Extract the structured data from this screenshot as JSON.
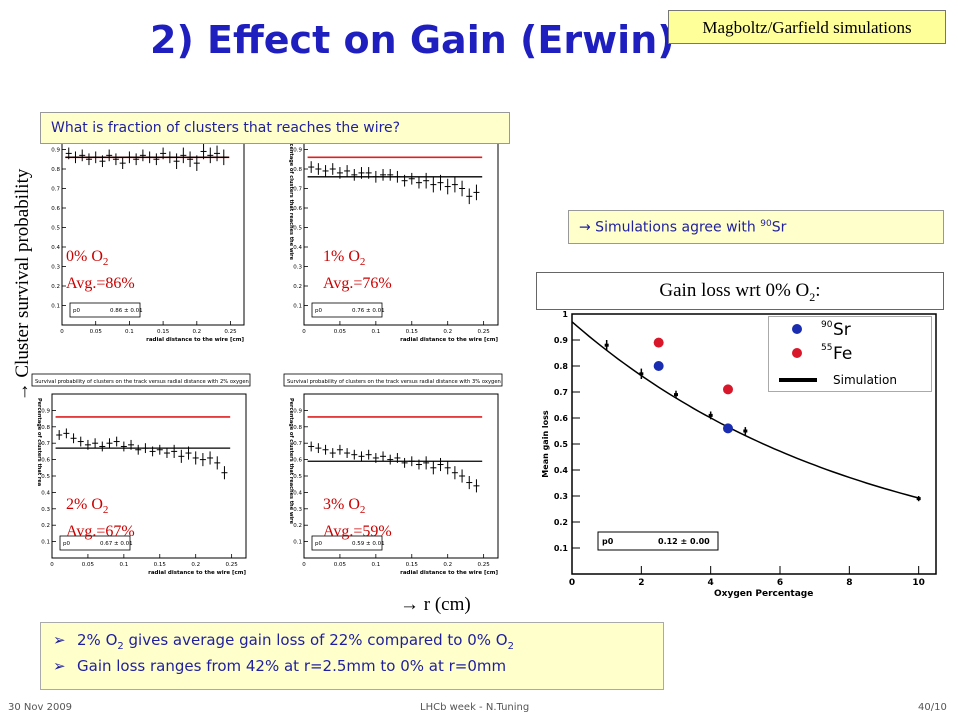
{
  "slide": {
    "title": "2) Effect on Gain  (Erwin)",
    "tag": "Magboltz/Garfield simulations",
    "question": "What is fraction of clusters that reaches the wire?",
    "y_axis_label": "→ Cluster survival probability",
    "x_axis_label": "→ r (cm)",
    "agree_text_pre": "→  Simulations agree with ",
    "agree_sup": "90",
    "agree_text_post": "Sr",
    "gain_loss_pre": "Gain loss wrt 0% O",
    "gain_loss_sub": "2",
    "gain_loss_post": ":",
    "summary_bullet": "➢",
    "summary_1": {
      "a": "2% O",
      "b": "2",
      "c": " gives average gain loss of 22% compared to 0% O",
      "d": "2"
    },
    "summary_2": "Gain loss ranges from 42% at r=2.5mm to 0% at r=0mm",
    "footer_left": "30 Nov 2009",
    "footer_mid": "LHCb week - N.Tuning",
    "footer_right": "40/10"
  },
  "colors": {
    "title": "#1f1fbf",
    "data_red": "#cc0000",
    "ref_line": "#e02020",
    "fit_line": "#000000",
    "sr90": "#1a2db0",
    "fe55": "#d8182a",
    "box_bg": "#ffffcc"
  },
  "chart_data": [
    {
      "type": "scatter",
      "label_a": "0% O",
      "label_sub": "2",
      "label_b": "Avg.=86%",
      "title": "",
      "xlabel": "radial distance to the wire [cm]",
      "ylabel": "",
      "fit_box": "0.86 ± 0.01",
      "fit_name": "p0",
      "xlim": [
        0,
        0.27
      ],
      "ylim": [
        0,
        1
      ],
      "x_ticks": [
        "0",
        "0.05",
        "0.1",
        "0.15",
        "0.2",
        "0.25"
      ],
      "y_ticks": [
        "0.1",
        "0.2",
        "0.3",
        "0.4",
        "0.5",
        "0.6",
        "0.7",
        "0.8",
        "0.9"
      ],
      "reference": 0.86,
      "fit": 0.86,
      "x": [
        0.01,
        0.02,
        0.03,
        0.04,
        0.05,
        0.06,
        0.07,
        0.08,
        0.09,
        0.1,
        0.11,
        0.12,
        0.13,
        0.14,
        0.15,
        0.16,
        0.17,
        0.18,
        0.19,
        0.2,
        0.21,
        0.22,
        0.23,
        0.24
      ],
      "y": [
        0.88,
        0.86,
        0.87,
        0.85,
        0.86,
        0.84,
        0.87,
        0.85,
        0.83,
        0.86,
        0.85,
        0.87,
        0.86,
        0.85,
        0.88,
        0.86,
        0.84,
        0.87,
        0.85,
        0.83,
        0.89,
        0.87,
        0.88,
        0.86
      ],
      "err": [
        0.03,
        0.03,
        0.03,
        0.03,
        0.03,
        0.03,
        0.03,
        0.03,
        0.03,
        0.03,
        0.03,
        0.03,
        0.03,
        0.03,
        0.03,
        0.03,
        0.04,
        0.04,
        0.04,
        0.04,
        0.04,
        0.04,
        0.04,
        0.04
      ]
    },
    {
      "type": "scatter",
      "label_a": "1% O",
      "label_sub": "2",
      "label_b": "Avg.=76%",
      "title": "",
      "xlabel": "radial distance to the wire [cm]",
      "ylabel": "Percentage of clusters that reaches the wire",
      "fit_box": "0.76 ± 0.01",
      "fit_name": "p0",
      "xlim": [
        0,
        0.27
      ],
      "ylim": [
        0,
        1
      ],
      "x_ticks": [
        "0",
        "0.05",
        "0.1",
        "0.15",
        "0.2",
        "0.25"
      ],
      "y_ticks": [
        "0.1",
        "0.2",
        "0.3",
        "0.4",
        "0.5",
        "0.6",
        "0.7",
        "0.8",
        "0.9"
      ],
      "reference": 0.86,
      "fit": 0.76,
      "x": [
        0.01,
        0.02,
        0.03,
        0.04,
        0.05,
        0.06,
        0.07,
        0.08,
        0.09,
        0.1,
        0.11,
        0.12,
        0.13,
        0.14,
        0.15,
        0.16,
        0.17,
        0.18,
        0.19,
        0.2,
        0.21,
        0.22,
        0.23,
        0.24
      ],
      "y": [
        0.81,
        0.8,
        0.79,
        0.8,
        0.78,
        0.79,
        0.77,
        0.78,
        0.78,
        0.76,
        0.77,
        0.77,
        0.76,
        0.74,
        0.75,
        0.73,
        0.74,
        0.72,
        0.73,
        0.71,
        0.72,
        0.7,
        0.66,
        0.68
      ],
      "err": [
        0.03,
        0.03,
        0.03,
        0.03,
        0.03,
        0.03,
        0.03,
        0.03,
        0.03,
        0.03,
        0.03,
        0.03,
        0.03,
        0.03,
        0.03,
        0.03,
        0.04,
        0.04,
        0.04,
        0.04,
        0.04,
        0.04,
        0.04,
        0.04
      ]
    },
    {
      "type": "scatter",
      "label_a": "2% O",
      "label_sub": "2",
      "label_b": "Avg.=67%",
      "title": "Survival probability of clusters on the track versus radial distance with 2% oxygen",
      "xlabel": "radial distance to the wire [cm]",
      "ylabel": "Percentage of clusters that rea",
      "fit_box": "0.67 ± 0.01",
      "fit_name": "p0",
      "xlim": [
        0,
        0.27
      ],
      "ylim": [
        0,
        1
      ],
      "x_ticks": [
        "0",
        "0.05",
        "0.1",
        "0.15",
        "0.2",
        "0.25"
      ],
      "y_ticks": [
        "0.1",
        "0.2",
        "0.3",
        "0.4",
        "0.5",
        "0.6",
        "0.7",
        "0.8",
        "0.9"
      ],
      "reference": 0.86,
      "fit": 0.67,
      "x": [
        0.01,
        0.02,
        0.03,
        0.04,
        0.05,
        0.06,
        0.07,
        0.08,
        0.09,
        0.1,
        0.11,
        0.12,
        0.13,
        0.14,
        0.15,
        0.16,
        0.17,
        0.18,
        0.19,
        0.2,
        0.21,
        0.22,
        0.23,
        0.24
      ],
      "y": [
        0.75,
        0.76,
        0.73,
        0.71,
        0.69,
        0.7,
        0.68,
        0.7,
        0.71,
        0.68,
        0.69,
        0.66,
        0.67,
        0.65,
        0.66,
        0.64,
        0.65,
        0.62,
        0.64,
        0.61,
        0.6,
        0.61,
        0.58,
        0.52
      ],
      "err": [
        0.03,
        0.03,
        0.03,
        0.03,
        0.03,
        0.03,
        0.03,
        0.03,
        0.03,
        0.03,
        0.03,
        0.03,
        0.03,
        0.03,
        0.03,
        0.03,
        0.04,
        0.04,
        0.04,
        0.04,
        0.04,
        0.04,
        0.04,
        0.04
      ]
    },
    {
      "type": "scatter",
      "label_a": "3% O",
      "label_sub": "2",
      "label_b": "Avg.=59%",
      "title": "Survival probability of clusters on the track versus radial distance with 3% oxygen",
      "xlabel": "radial distance to the wire [cm]",
      "ylabel": "Percentage of clusters that reaches the wire",
      "fit_box": "0.59 ± 0.01",
      "fit_name": "p0",
      "xlim": [
        0,
        0.27
      ],
      "ylim": [
        0,
        1
      ],
      "x_ticks": [
        "0",
        "0.05",
        "0.1",
        "0.15",
        "0.2",
        "0.25"
      ],
      "y_ticks": [
        "0.1",
        "0.2",
        "0.3",
        "0.4",
        "0.5",
        "0.6",
        "0.7",
        "0.8",
        "0.9"
      ],
      "reference": 0.86,
      "fit": 0.59,
      "x": [
        0.01,
        0.02,
        0.03,
        0.04,
        0.05,
        0.06,
        0.07,
        0.08,
        0.09,
        0.1,
        0.11,
        0.12,
        0.13,
        0.14,
        0.15,
        0.16,
        0.17,
        0.18,
        0.19,
        0.2,
        0.21,
        0.22,
        0.23,
        0.24
      ],
      "y": [
        0.68,
        0.67,
        0.66,
        0.64,
        0.66,
        0.64,
        0.63,
        0.62,
        0.63,
        0.61,
        0.62,
        0.6,
        0.61,
        0.58,
        0.59,
        0.57,
        0.58,
        0.55,
        0.57,
        0.55,
        0.52,
        0.5,
        0.46,
        0.44
      ],
      "err": [
        0.03,
        0.03,
        0.03,
        0.03,
        0.03,
        0.03,
        0.03,
        0.03,
        0.03,
        0.03,
        0.03,
        0.03,
        0.03,
        0.03,
        0.03,
        0.03,
        0.04,
        0.04,
        0.04,
        0.04,
        0.04,
        0.04,
        0.04,
        0.04
      ]
    },
    {
      "type": "scatter",
      "title": "",
      "xlabel": "Oxygen Percentage",
      "ylabel": "Mean gain loss",
      "fit_box": "0.12 ± 0.00",
      "fit_name": "p0",
      "xlim": [
        0,
        10.5
      ],
      "ylim": [
        0,
        1
      ],
      "x_ticks": [
        "0",
        "2",
        "4",
        "6",
        "8",
        "10"
      ],
      "y_ticks": [
        "0.1",
        "0.2",
        "0.3",
        "0.4",
        "0.5",
        "0.6",
        "0.7",
        "0.8",
        "0.9",
        "1"
      ],
      "simulation_curve": {
        "x0": 0.0,
        "y0": 0.97,
        "decay": 0.12
      },
      "series": [
        {
          "name": "Simulation",
          "marker": "errorbar",
          "x": [
            1,
            2,
            3,
            4,
            4.5,
            5,
            10
          ],
          "y": [
            0.88,
            0.77,
            0.69,
            0.61,
            0.56,
            0.55,
            0.29
          ],
          "err": [
            0.02,
            0.02,
            0.015,
            0.015,
            0.015,
            0.015,
            0.01
          ]
        },
        {
          "name": "90Sr",
          "marker": "circle",
          "color": "#1a2db0",
          "x": [
            2.5,
            4.5
          ],
          "y": [
            0.8,
            0.56
          ]
        },
        {
          "name": "55Fe",
          "marker": "circle",
          "color": "#d8182a",
          "x": [
            2.5,
            4.5
          ],
          "y": [
            0.89,
            0.71
          ]
        }
      ],
      "legend": [
        {
          "sup": "90",
          "label": "Sr",
          "color": "#1a2db0"
        },
        {
          "sup": "55",
          "label": "Fe",
          "color": "#d8182a"
        },
        {
          "label": "Simulation",
          "line": true
        }
      ]
    }
  ]
}
